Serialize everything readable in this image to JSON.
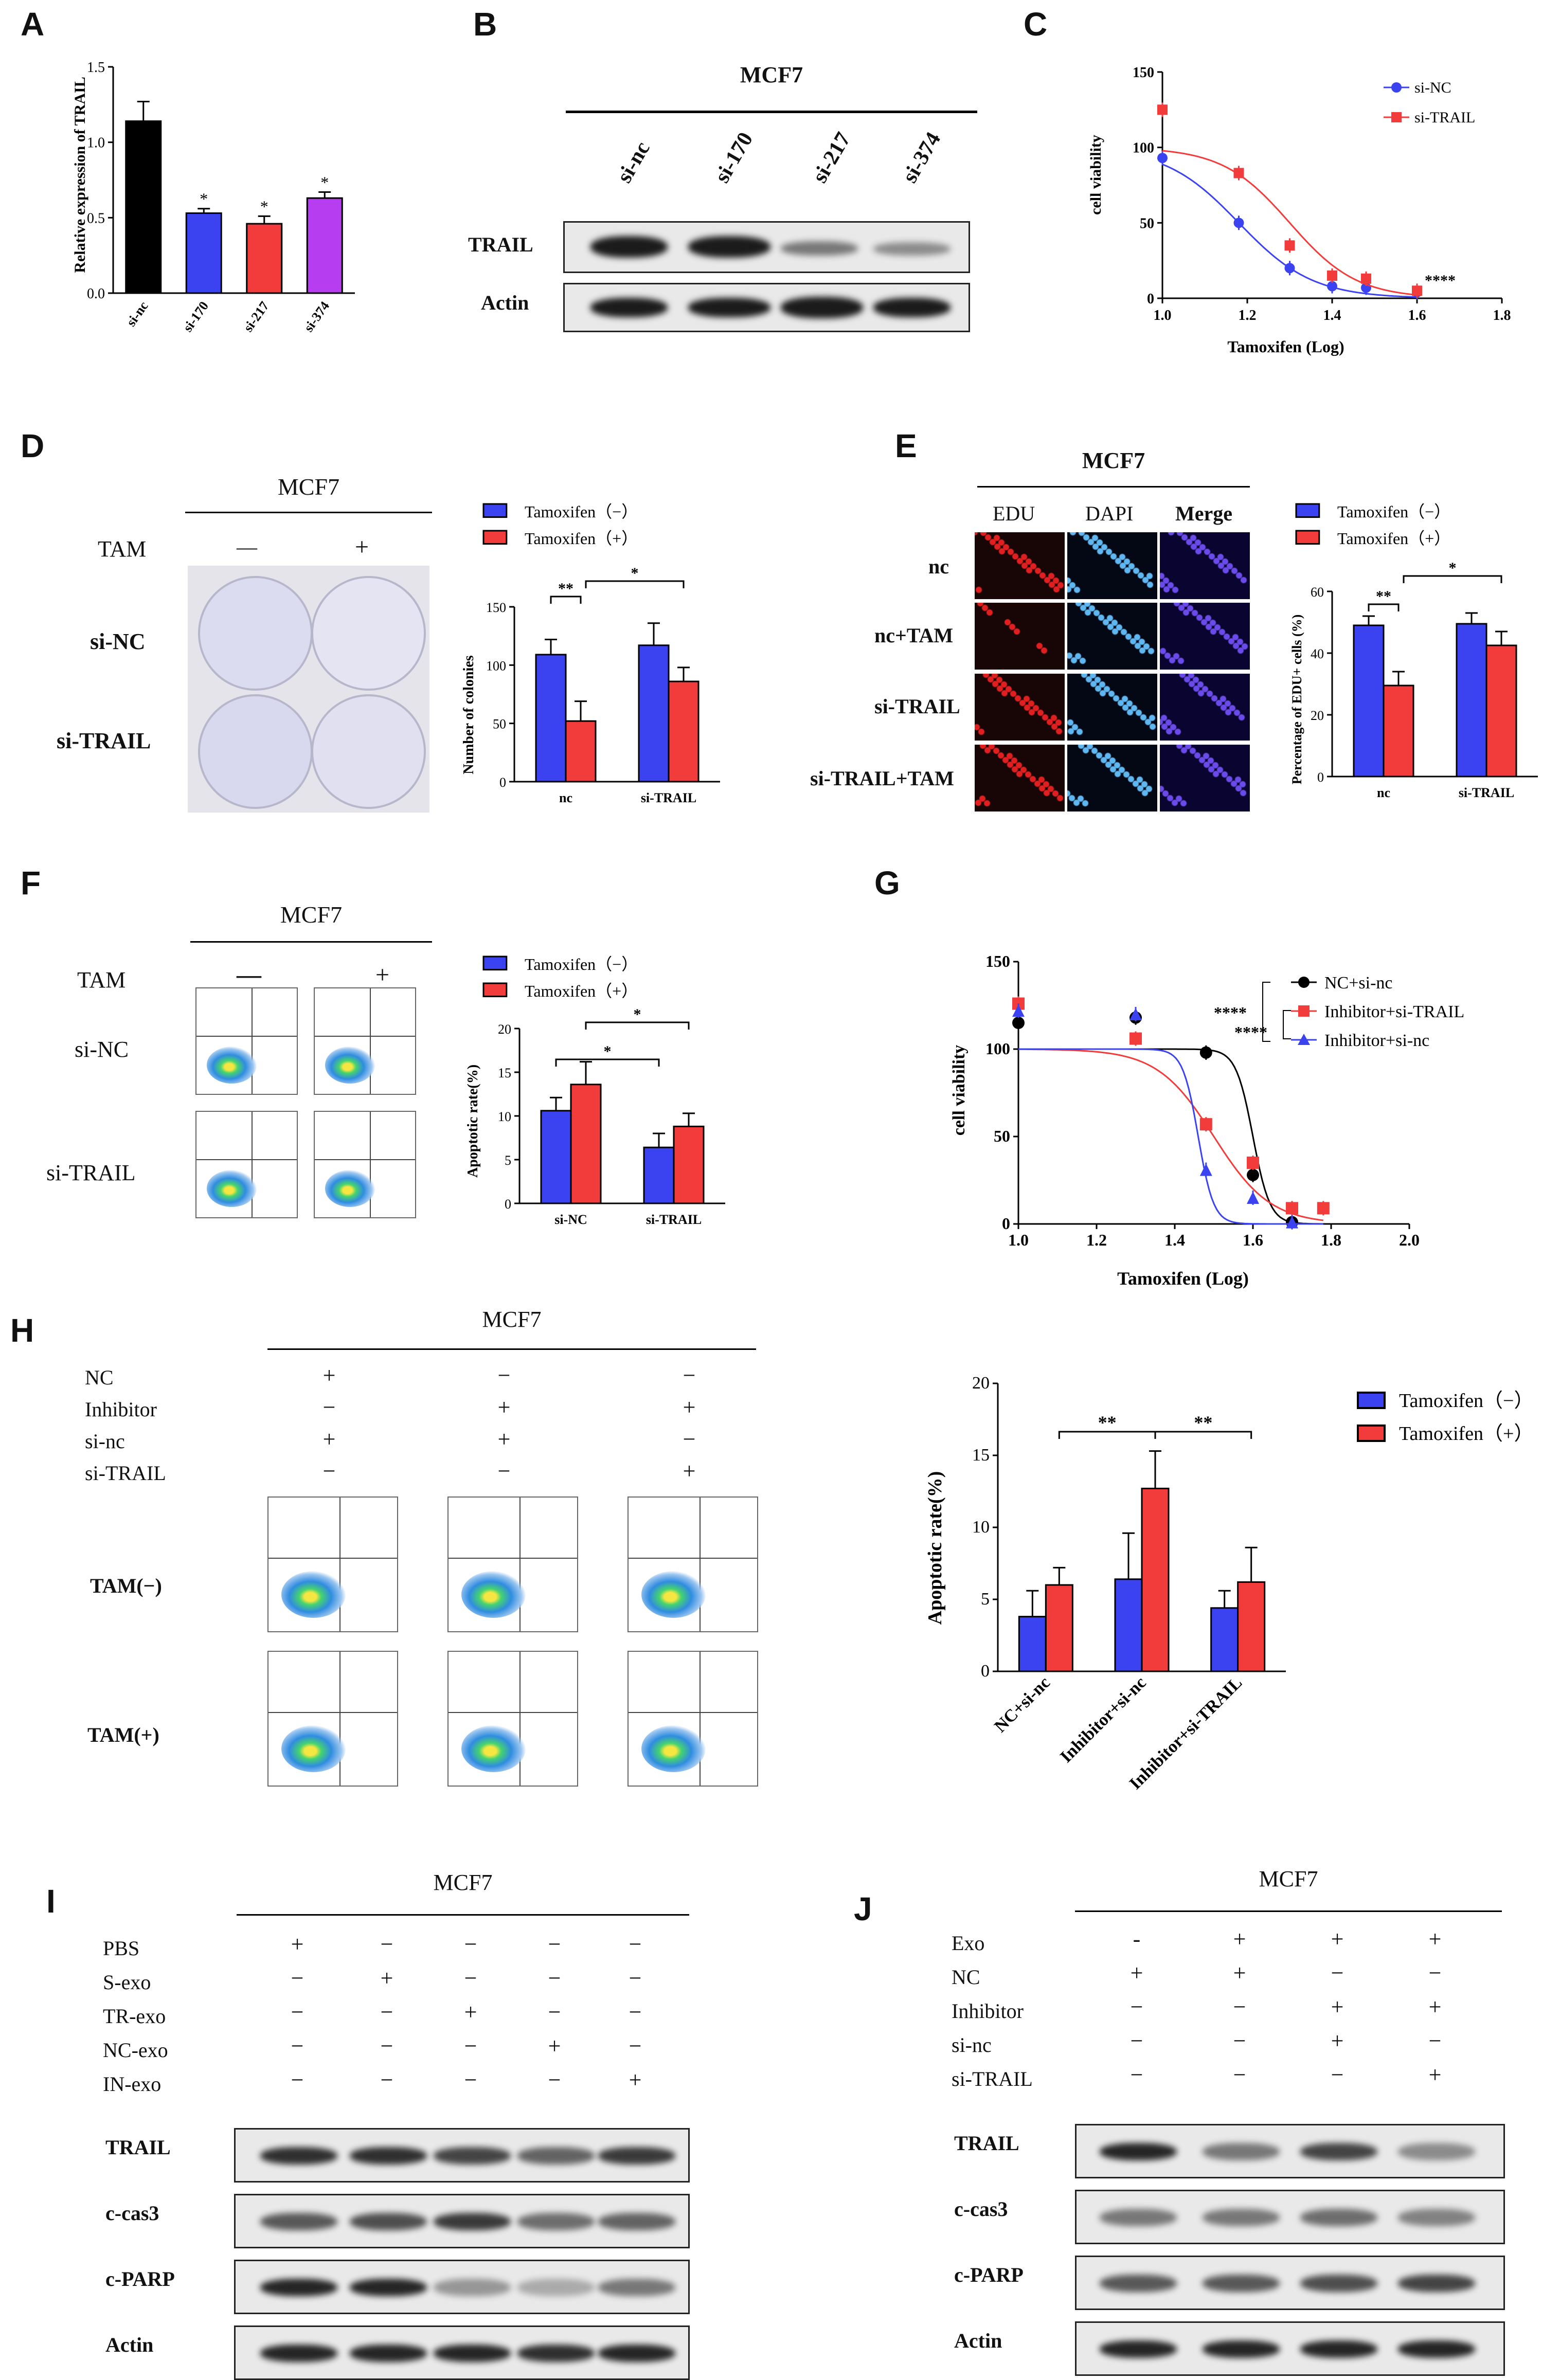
{
  "colors": {
    "blue": "#3b43f0",
    "red": "#f23b3b",
    "black": "#000000",
    "purple": "#b63ef0",
    "lightblue": "#4b8ff0"
  },
  "A": {
    "label": "A",
    "ylabel": "Relative expression of TRAIL",
    "chart_data": {
      "type": "bar",
      "categories": [
        "si-nc",
        "si-170",
        "si-217",
        "si-374"
      ],
      "values": [
        1.14,
        0.53,
        0.46,
        0.63
      ],
      "errors": [
        0.13,
        0.03,
        0.05,
        0.04
      ],
      "ylim": [
        0,
        1.5
      ],
      "yticks": [
        "0.0",
        "0.5",
        "1.0",
        "1.5"
      ],
      "annotations": [
        "",
        "*",
        "*",
        "*"
      ]
    }
  },
  "B": {
    "label": "B",
    "title": "MCF7",
    "lanes": [
      "si-nc",
      "si-170",
      "si-217",
      "si-374"
    ],
    "rows": [
      "TRAIL",
      "Actin"
    ]
  },
  "C": {
    "label": "C",
    "ylabel": "cell viability",
    "xlabel": "Tamoxifen (Log)",
    "sig": "****",
    "chart_data": {
      "type": "line",
      "xlim": [
        1.0,
        1.8
      ],
      "ylim": [
        0,
        150
      ],
      "xticks": [
        "1.0",
        "1.2",
        "1.4",
        "1.6",
        "1.8"
      ],
      "yticks": [
        "0",
        "50",
        "100",
        "150"
      ],
      "series": [
        {
          "name": "si-NC",
          "x": [
            1.0,
            1.18,
            1.3,
            1.4,
            1.48,
            1.6
          ],
          "y": [
            93,
            50,
            20,
            8,
            7,
            4
          ]
        },
        {
          "name": "si-TRAIL",
          "x": [
            1.0,
            1.18,
            1.3,
            1.4,
            1.48,
            1.6
          ],
          "y": [
            125,
            83,
            35,
            15,
            13,
            5
          ]
        }
      ]
    }
  },
  "D": {
    "label": "D",
    "title": "MCF7",
    "tam": "TAM",
    "tam_minus": "—",
    "tam_plus": "+",
    "rows": [
      "si-NC",
      "si-TRAIL"
    ],
    "legend": [
      "Tamoxifen（−）",
      "Tamoxifen（+）"
    ],
    "ylabel": "Number of colonies",
    "sig": [
      "**",
      "*"
    ],
    "chart_data": {
      "type": "bar",
      "categories": [
        "nc",
        "si-TRAIL"
      ],
      "ylim": [
        0,
        150
      ],
      "yticks": [
        "0",
        "50",
        "100",
        "150"
      ],
      "series": [
        {
          "name": "Tamoxifen（−）",
          "values": [
            109,
            117
          ],
          "errors": [
            13,
            19
          ]
        },
        {
          "name": "Tamoxifen（+）",
          "values": [
            52,
            86
          ],
          "errors": [
            17,
            12
          ]
        }
      ]
    }
  },
  "E": {
    "label": "E",
    "title": "MCF7",
    "cols": [
      "EDU",
      "DAPI",
      "Merge"
    ],
    "rows": [
      "nc",
      "nc+TAM",
      "si-TRAIL",
      "si-TRAIL+TAM"
    ],
    "legend": [
      "Tamoxifen（−）",
      "Tamoxifen（+）"
    ],
    "ylabel": "Percentage of EDU+ cells (%)",
    "sig": [
      "**",
      "*"
    ],
    "chart_data": {
      "type": "bar",
      "categories": [
        "nc",
        "si-TRAIL"
      ],
      "ylim": [
        0,
        60
      ],
      "yticks": [
        "0",
        "20",
        "40",
        "60"
      ],
      "series": [
        {
          "name": "Tamoxifen（−）",
          "values": [
            49,
            49.5
          ],
          "errors": [
            3,
            3.5
          ]
        },
        {
          "name": "Tamoxifen（+）",
          "values": [
            29.5,
            42.5
          ],
          "errors": [
            4.5,
            4.5
          ]
        }
      ]
    }
  },
  "F": {
    "label": "F",
    "title": "MCF7",
    "tam": "TAM",
    "tam_minus": "—",
    "tam_plus": "+",
    "rows": [
      "si-NC",
      "si-TRAIL"
    ],
    "legend": [
      "Tamoxifen（−）",
      "Tamoxifen（+）"
    ],
    "ylabel": "Apoptotic rate(%)",
    "sig": [
      "*",
      "*"
    ],
    "chart_data": {
      "type": "bar",
      "categories": [
        "si-NC",
        "si-TRAIL"
      ],
      "ylim": [
        0,
        20
      ],
      "yticks": [
        "0",
        "5",
        "10",
        "15",
        "20"
      ],
      "series": [
        {
          "name": "Tamoxifen（−）",
          "values": [
            10.6,
            6.4
          ],
          "errors": [
            1.5,
            1.6
          ]
        },
        {
          "name": "Tamoxifen（+）",
          "values": [
            13.6,
            8.8
          ],
          "errors": [
            2.6,
            1.5
          ]
        }
      ]
    }
  },
  "G": {
    "label": "G",
    "ylabel": "cell viability",
    "xlabel": "Tamoxifen (Log)",
    "sig": [
      "****",
      "****"
    ],
    "chart_data": {
      "type": "line",
      "xlim": [
        1.0,
        2.0
      ],
      "ylim": [
        0,
        150
      ],
      "xticks": [
        "1.0",
        "1.2",
        "1.4",
        "1.6",
        "1.8",
        "2.0"
      ],
      "yticks": [
        "0",
        "50",
        "100",
        "150"
      ],
      "series": [
        {
          "name": "NC+si-nc",
          "x": [
            1.0,
            1.3,
            1.48,
            1.6,
            1.7
          ],
          "y": [
            115,
            118,
            98,
            28,
            1
          ]
        },
        {
          "name": "Inhibitor+si-TRAIL",
          "x": [
            1.0,
            1.3,
            1.48,
            1.6,
            1.7,
            1.78
          ],
          "y": [
            126,
            106,
            57,
            35,
            9,
            9
          ]
        },
        {
          "name": "Inhibitor+si-nc",
          "x": [
            1.0,
            1.3,
            1.48,
            1.6,
            1.7
          ],
          "y": [
            122,
            120,
            31,
            15,
            1
          ]
        }
      ]
    }
  },
  "H": {
    "label": "H",
    "title": "MCF7",
    "rows": [
      {
        "name": "NC",
        "signs": [
          "+",
          "−",
          "−"
        ]
      },
      {
        "name": "Inhibitor",
        "signs": [
          "−",
          "+",
          "+"
        ]
      },
      {
        "name": "si-nc",
        "signs": [
          "+",
          "+",
          "−"
        ]
      },
      {
        "name": "si-TRAIL",
        "signs": [
          "−",
          "−",
          "+"
        ]
      }
    ],
    "tamrows": [
      "TAM(−)",
      "TAM(+)"
    ],
    "legend": [
      "Tamoxifen（−）",
      "Tamoxifen（+）"
    ],
    "ylabel": "Apoptotic rate(%)",
    "sig": [
      "**",
      "**"
    ],
    "chart_data": {
      "type": "bar",
      "categories": [
        "NC+si-nc",
        "Inhibitor+si-nc",
        "Inhibitor+si-TRAIL"
      ],
      "ylim": [
        0,
        20
      ],
      "yticks": [
        "0",
        "5",
        "10",
        "15",
        "20"
      ],
      "series": [
        {
          "name": "Tamoxifen（−）",
          "values": [
            3.8,
            6.4,
            4.4
          ],
          "errors": [
            1.8,
            3.2,
            1.2
          ]
        },
        {
          "name": "Tamoxifen（+）",
          "values": [
            6.0,
            12.7,
            6.2
          ],
          "errors": [
            1.2,
            2.6,
            2.4
          ]
        }
      ]
    }
  },
  "I": {
    "label": "I",
    "title": "MCF7",
    "rows": [
      {
        "name": "PBS",
        "signs": [
          "+",
          "−",
          "−",
          "−",
          "−"
        ]
      },
      {
        "name": "S-exo",
        "signs": [
          "−",
          "+",
          "−",
          "−",
          "−"
        ]
      },
      {
        "name": "TR-exo",
        "signs": [
          "−",
          "−",
          "+",
          "−",
          "−"
        ]
      },
      {
        "name": "NC-exo",
        "signs": [
          "−",
          "−",
          "−",
          "+",
          "−"
        ]
      },
      {
        "name": "IN-exo",
        "signs": [
          "−",
          "−",
          "−",
          "−",
          "+"
        ]
      }
    ],
    "blots": [
      "TRAIL",
      "c-cas3",
      "c-PARP",
      "Actin"
    ]
  },
  "J": {
    "label": "J",
    "title": "MCF7",
    "rows": [
      {
        "name": "Exo",
        "signs": [
          "-",
          "+",
          "+",
          "+"
        ]
      },
      {
        "name": "NC",
        "signs": [
          "+",
          "+",
          "−",
          "−"
        ]
      },
      {
        "name": "Inhibitor",
        "signs": [
          "−",
          "−",
          "+",
          "+"
        ]
      },
      {
        "name": "si-nc",
        "signs": [
          "−",
          "−",
          "+",
          "−"
        ]
      },
      {
        "name": "si-TRAIL",
        "signs": [
          "−",
          "−",
          "−",
          "+"
        ]
      }
    ],
    "blots": [
      "TRAIL",
      "c-cas3",
      "c-PARP",
      "Actin"
    ]
  }
}
